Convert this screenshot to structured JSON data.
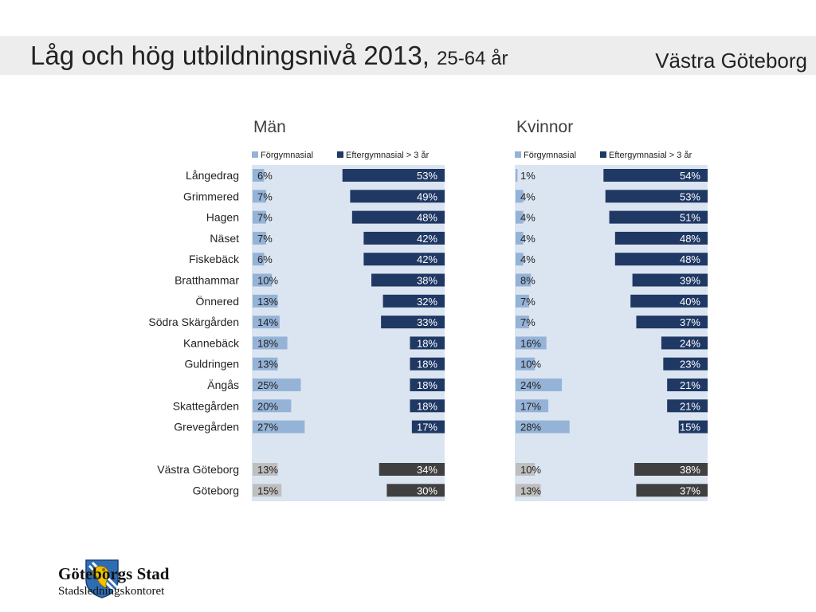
{
  "header": {
    "title_main": "Låg och hög utbildningsnivå 2013,",
    "title_sub": "25-64 år",
    "region": "Västra Göteborg"
  },
  "logo": {
    "name": "Göteborgs Stad",
    "unit": "Stadsledningskontoret",
    "emblem_icon": "goteborg-coat-of-arms-icon"
  },
  "colors": {
    "panel_bg": "#dbe5f1",
    "low_edu": "#95b3d7",
    "high_edu": "#1f3864",
    "total_low": "#bfbfbf",
    "total_high": "#404040"
  },
  "chart_data": [
    {
      "type": "bar",
      "title": "Män",
      "legend": [
        "Förgymnasial",
        "Eftergymnasial > 3 år"
      ],
      "legend_position": "top",
      "categories": [
        "Långedrag",
        "Grimmered",
        "Hagen",
        "Näset",
        "Fiskebäck",
        "Bratthammar",
        "Önnered",
        "Södra Skärgården",
        "Kannebäck",
        "Guldringen",
        "Ängås",
        "Skattegården",
        "Grevegården",
        "Västra Göteborg",
        "Göteborg"
      ],
      "series": [
        {
          "name": "Förgymnasial",
          "values": [
            6,
            7,
            7,
            7,
            6,
            10,
            13,
            14,
            18,
            13,
            25,
            20,
            27,
            13,
            15
          ]
        },
        {
          "name": "Eftergymnasial > 3 år",
          "values": [
            53,
            49,
            48,
            42,
            42,
            38,
            32,
            33,
            18,
            18,
            18,
            18,
            17,
            34,
            30
          ]
        }
      ],
      "value_labels": {
        "low": [
          "6%",
          "7%",
          "7%",
          "7%",
          "6%",
          "10%",
          "13%",
          "14%",
          "18%",
          "13%",
          "25%",
          "20%",
          "27%",
          "13%",
          "15%"
        ],
        "high": [
          "53%",
          "49%",
          "48%",
          "42%",
          "42%",
          "38%",
          "32%",
          "33%",
          "18%",
          "18%",
          "18%",
          "18%",
          "17%",
          "34%",
          "30%"
        ]
      },
      "total_rows": [
        "Västra Göteborg",
        "Göteborg"
      ]
    },
    {
      "type": "bar",
      "title": "Kvinnor",
      "legend": [
        "Förgymnasial",
        "Eftergymnasial > 3 år"
      ],
      "legend_position": "top",
      "categories": [
        "Långedrag",
        "Grimmered",
        "Hagen",
        "Näset",
        "Fiskebäck",
        "Bratthammar",
        "Önnered",
        "Södra Skärgården",
        "Kannebäck",
        "Guldringen",
        "Ängås",
        "Skattegården",
        "Grevegården",
        "Västra Göteborg",
        "Göteborg"
      ],
      "series": [
        {
          "name": "Förgymnasial",
          "values": [
            1,
            4,
            4,
            4,
            4,
            8,
            7,
            7,
            16,
            10,
            24,
            17,
            28,
            10,
            13
          ]
        },
        {
          "name": "Eftergymnasial > 3 år",
          "values": [
            54,
            53,
            51,
            48,
            48,
            39,
            40,
            37,
            24,
            23,
            21,
            21,
            15,
            38,
            37
          ]
        }
      ],
      "value_labels": {
        "low": [
          "1%",
          "4%",
          "4%",
          "4%",
          "4%",
          "8%",
          "7%",
          "7%",
          "16%",
          "10%",
          "24%",
          "17%",
          "28%",
          "10%",
          "13%"
        ],
        "high": [
          "54%",
          "53%",
          "51%",
          "48%",
          "48%",
          "39%",
          "40%",
          "37%",
          "24%",
          "23%",
          "21%",
          "21%",
          "15%",
          "38%",
          "37%"
        ]
      },
      "total_rows": [
        "Västra Göteborg",
        "Göteborg"
      ]
    }
  ]
}
